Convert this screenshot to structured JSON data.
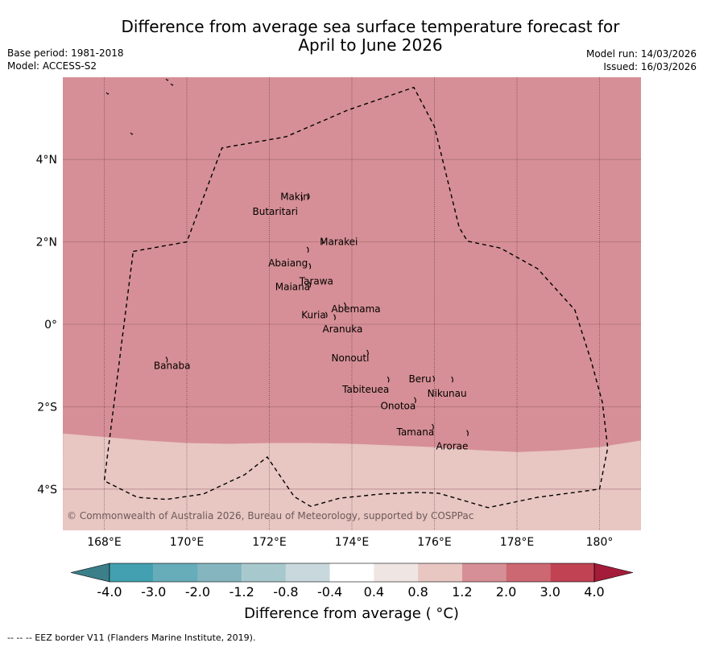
{
  "header": {
    "title_line1": "Difference from average sea surface temperature forecast for",
    "title_line2": "April to June 2026",
    "base_period": "Base period: 1981-2018",
    "model": "Model: ACCESS-S2",
    "model_run": "Model run: 14/03/2026",
    "issued": "Issued: 16/03/2026"
  },
  "map": {
    "lon_range": [
      167,
      181
    ],
    "lat_range": [
      -5,
      6
    ],
    "x_ticks": [
      {
        "value": 168,
        "label": "168°E"
      },
      {
        "value": 170,
        "label": "170°E"
      },
      {
        "value": 172,
        "label": "172°E"
      },
      {
        "value": 174,
        "label": "174°E"
      },
      {
        "value": 176,
        "label": "176°E"
      },
      {
        "value": 178,
        "label": "178°E"
      },
      {
        "value": 180,
        "label": "180°"
      }
    ],
    "y_ticks": [
      {
        "value": 4,
        "label": "4°N"
      },
      {
        "value": 2,
        "label": "2°N"
      },
      {
        "value": 0,
        "label": "0°"
      },
      {
        "value": -2,
        "label": "2°S"
      },
      {
        "value": -4,
        "label": "4°S"
      }
    ],
    "anomaly_zones": [
      {
        "category": "1.2 to 2.0",
        "color": "#d68f96",
        "description": "north of about 2.7–3.1°S"
      },
      {
        "category": "0.8 to 1.2",
        "color": "#e8c6c2",
        "description": "south of about 2.7–3.1°S"
      }
    ],
    "zone_boundary": [
      [
        167.0,
        -2.65
      ],
      [
        169,
        -2.82
      ],
      [
        170,
        -2.88
      ],
      [
        171,
        -2.9
      ],
      [
        172,
        -2.88
      ],
      [
        173,
        -2.88
      ],
      [
        174,
        -2.9
      ],
      [
        175,
        -2.94
      ],
      [
        176,
        -2.98
      ],
      [
        177,
        -3.05
      ],
      [
        178,
        -3.1
      ],
      [
        179,
        -3.06
      ],
      [
        180,
        -2.98
      ],
      [
        181,
        -2.82
      ]
    ],
    "eez_border": [
      [
        168.7,
        1.77
      ],
      [
        170.0,
        2.0
      ],
      [
        170.85,
        4.28
      ],
      [
        172.4,
        4.55
      ],
      [
        173.9,
        5.2
      ],
      [
        175.5,
        5.75
      ],
      [
        176.0,
        4.8
      ],
      [
        176.6,
        2.35
      ],
      [
        176.8,
        2.02
      ],
      [
        177.6,
        1.85
      ],
      [
        178.5,
        1.35
      ],
      [
        179.4,
        0.35
      ],
      [
        179.8,
        -0.9
      ],
      [
        180.07,
        -1.9
      ],
      [
        180.2,
        -3.0
      ],
      [
        180.0,
        -4.0
      ],
      [
        178.5,
        -4.2
      ],
      [
        177.3,
        -4.45
      ],
      [
        176.1,
        -4.1
      ],
      [
        175.6,
        -4.08
      ],
      [
        174.7,
        -4.12
      ],
      [
        173.7,
        -4.22
      ],
      [
        173.0,
        -4.42
      ],
      [
        172.6,
        -4.18
      ],
      [
        171.95,
        -3.22
      ],
      [
        171.4,
        -3.65
      ],
      [
        170.4,
        -4.12
      ],
      [
        169.5,
        -4.25
      ],
      [
        168.8,
        -4.2
      ],
      [
        168.0,
        -3.8
      ],
      [
        168.7,
        1.77
      ]
    ],
    "islands": [
      {
        "name": "Makin",
        "lon": 172.97,
        "lat": 3.1
      },
      {
        "name": "Butaritari",
        "lon": 172.8,
        "lat": 3.05
      },
      {
        "name": "Marakei",
        "lon": 173.3,
        "lat": 2.0
      },
      {
        "name": "Abaiang",
        "lon": 172.95,
        "lat": 1.8
      },
      {
        "name": "Tarawa",
        "lon": 173.0,
        "lat": 1.4
      },
      {
        "name": "Maiana",
        "lon": 173.0,
        "lat": 0.95
      },
      {
        "name": "Abemama",
        "lon": 173.85,
        "lat": 0.45
      },
      {
        "name": "Kuria",
        "lon": 173.4,
        "lat": 0.22
      },
      {
        "name": "Aranuka",
        "lon": 173.6,
        "lat": 0.16
      },
      {
        "name": "Nonouti",
        "lon": 174.4,
        "lat": -0.7
      },
      {
        "name": "Tabiteuea",
        "lon": 174.9,
        "lat": -1.35
      },
      {
        "name": "Beru",
        "lon": 176.0,
        "lat": -1.33
      },
      {
        "name": "Nikunau",
        "lon": 176.45,
        "lat": -1.35
      },
      {
        "name": "Onotoa",
        "lon": 175.55,
        "lat": -1.85
      },
      {
        "name": "Tamana",
        "lon": 175.98,
        "lat": -2.5
      },
      {
        "name": "Arorae",
        "lon": 176.82,
        "lat": -2.65
      },
      {
        "name": "Banaba",
        "lon": 169.53,
        "lat": -0.87
      }
    ],
    "copyright": "© Commonwealth of Australia 2026, Bureau of Meteorology, supported by COSPPac"
  },
  "colorbar": {
    "label": "Difference from average ( °C)",
    "tick_labels": [
      "-4.0",
      "-3.0",
      "-2.0",
      "-1.2",
      "-0.8",
      "-0.4",
      "0.4",
      "0.8",
      "1.2",
      "2.0",
      "3.0",
      "4.0"
    ],
    "under_color": "#3a7f8a",
    "over_color": "#a41c3a",
    "colors": [
      "#43a0b0",
      "#66acb9",
      "#85b6c0",
      "#a7c9cd",
      "#c8d8dc",
      "#ffffff",
      "#efe6e3",
      "#e8c6c2",
      "#d68f96",
      "#cc6872",
      "#c14253"
    ]
  },
  "footer": {
    "legend": "--  --  -- EEZ border V11 (Flanders Marine Institute, 2019)."
  }
}
